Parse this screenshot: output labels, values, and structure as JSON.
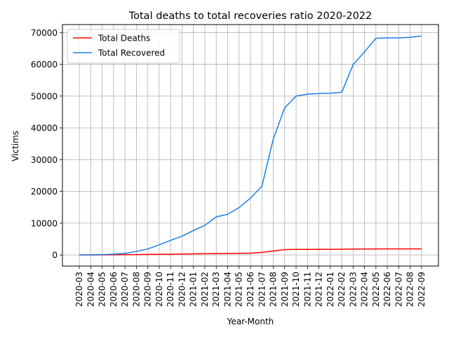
{
  "chart_data": {
    "type": "line",
    "title": "Total deaths to total recoveries ratio 2020-2022",
    "xlabel": "Year-Month",
    "ylabel": "Victims",
    "categories": [
      "2020-03",
      "2020-04",
      "2020-05",
      "2020-06",
      "2020-07",
      "2020-08",
      "2020-09",
      "2020-10",
      "2020-11",
      "2020-12",
      "2021-01",
      "2021-02",
      "2021-03",
      "2021-04",
      "2021-05",
      "2021-06",
      "2021-07",
      "2021-08",
      "2021-09",
      "2021-10",
      "2021-11",
      "2021-12",
      "2022-01",
      "2022-02",
      "2022-03",
      "2022-04",
      "2022-05",
      "2022-06",
      "2022-07",
      "2022-08",
      "2022-09"
    ],
    "ylim": [
      -3500,
      72500
    ],
    "yticks": [
      0,
      10000,
      20000,
      30000,
      40000,
      50000,
      60000,
      70000
    ],
    "grid": true,
    "legend_position": "upper-left",
    "series": [
      {
        "name": "Total Deaths",
        "color": "#ff0000",
        "values": [
          0,
          10,
          30,
          60,
          90,
          130,
          170,
          210,
          240,
          290,
          350,
          400,
          420,
          450,
          500,
          560,
          800,
          1250,
          1700,
          1750,
          1760,
          1770,
          1780,
          1790,
          1850,
          1880,
          1890,
          1900,
          1900,
          1910,
          1920
        ]
      },
      {
        "name": "Total Recovered",
        "color": "#1a7ee8",
        "values": [
          0,
          30,
          120,
          250,
          500,
          1100,
          1900,
          3200,
          4600,
          5900,
          7700,
          9300,
          12000,
          12800,
          14900,
          17900,
          21600,
          36500,
          46300,
          50000,
          50600,
          50800,
          50900,
          51200,
          59900,
          63900,
          68200,
          68300,
          68300,
          68500,
          68900
        ]
      }
    ]
  }
}
